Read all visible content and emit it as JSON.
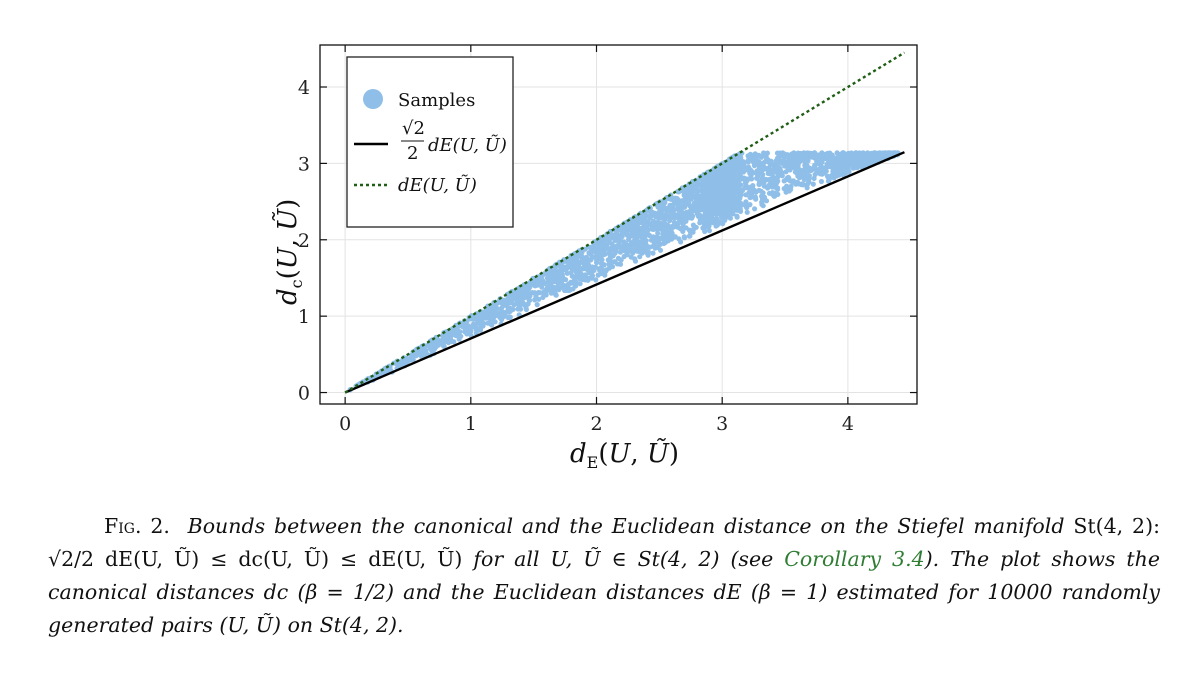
{
  "chart_data": {
    "type": "scatter",
    "x_ticks": [
      0,
      1,
      2,
      3,
      4
    ],
    "y_ticks": [
      0,
      1,
      2,
      3,
      4
    ],
    "xlim": [
      -0.2,
      4.55
    ],
    "ylim": [
      -0.15,
      4.55
    ],
    "grid": true,
    "legend_position": "top-left",
    "xlabel": "dE(U, Ũ)",
    "ylabel": "dc(U, Ũ)",
    "scatter_color": "#8fbfe8",
    "samples_region": {
      "x_range": [
        0,
        4.4
      ],
      "y_upper": "min(x, 3.14)",
      "y_lower": "0.7071 * x",
      "approx_count": 10000
    },
    "series": [
      {
        "name": "Samples",
        "kind": "scatter",
        "color": "#8fbfe8"
      },
      {
        "name": "√2/2 dE(U, Ũ)",
        "kind": "line",
        "color": "#000000",
        "dash": "solid",
        "x": [
          0,
          4.45
        ],
        "y": [
          0,
          3.147
        ]
      },
      {
        "name": "dE(U, Ũ)",
        "kind": "line",
        "color": "#1f5e14",
        "dash": "dotted",
        "x": [
          0,
          4.45
        ],
        "y": [
          0,
          4.45
        ]
      }
    ]
  },
  "legend": {
    "samples": "Samples",
    "lower_bound_coef_num": "√2",
    "lower_bound_coef_den": "2",
    "lower_bound_expr": "dE(U, Ũ)",
    "upper_bound_expr": "dE(U, Ũ)"
  },
  "caption": {
    "lead": "Fig. 2.",
    "part1": "Bounds between the canonical and the Euclidean distance on the Stiefel manifold",
    "part2_math": "St(4, 2):  √2/2 dE(U, Ũ) ≤ dc(U, Ũ) ≤ dE(U, Ũ)",
    "part3": "for all U, Ũ ∈ St(4, 2) (see",
    "link": "Corollary 3.4",
    "part4": "). The plot shows the canonical distances dc (β = 1/2) and the Euclidean distances dE (β = 1) estimated for 10000 randomly generated pairs (U, Ũ) on St(4, 2)."
  }
}
